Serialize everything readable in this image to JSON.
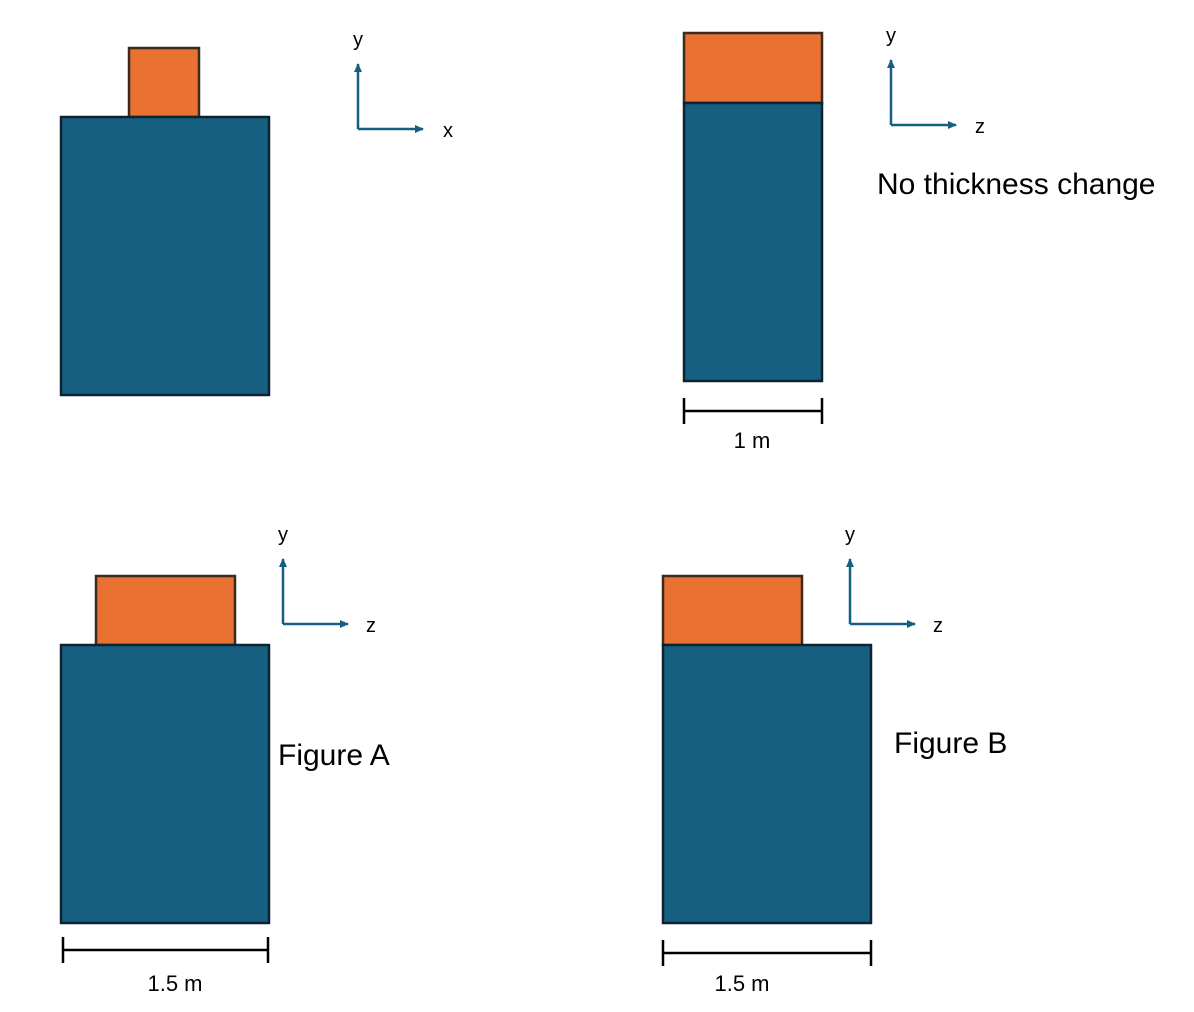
{
  "colors": {
    "block": "#175f80",
    "cap": "#e97132",
    "outline": "#0d2233",
    "axis": "#175f80",
    "dimension": "#000000"
  },
  "panels": {
    "top_left": {
      "axis_labels": {
        "vertical": "y",
        "horizontal": "x"
      }
    },
    "top_right": {
      "axis_labels": {
        "vertical": "y",
        "horizontal": "z"
      },
      "note": "No thickness change",
      "dimension": "1 m"
    },
    "figure_a": {
      "axis_labels": {
        "vertical": "y",
        "horizontal": "z"
      },
      "caption": "Figure A",
      "dimension": "1.5 m"
    },
    "figure_b": {
      "axis_labels": {
        "vertical": "y",
        "horizontal": "z"
      },
      "caption": "Figure B",
      "dimension": "1.5 m"
    }
  }
}
